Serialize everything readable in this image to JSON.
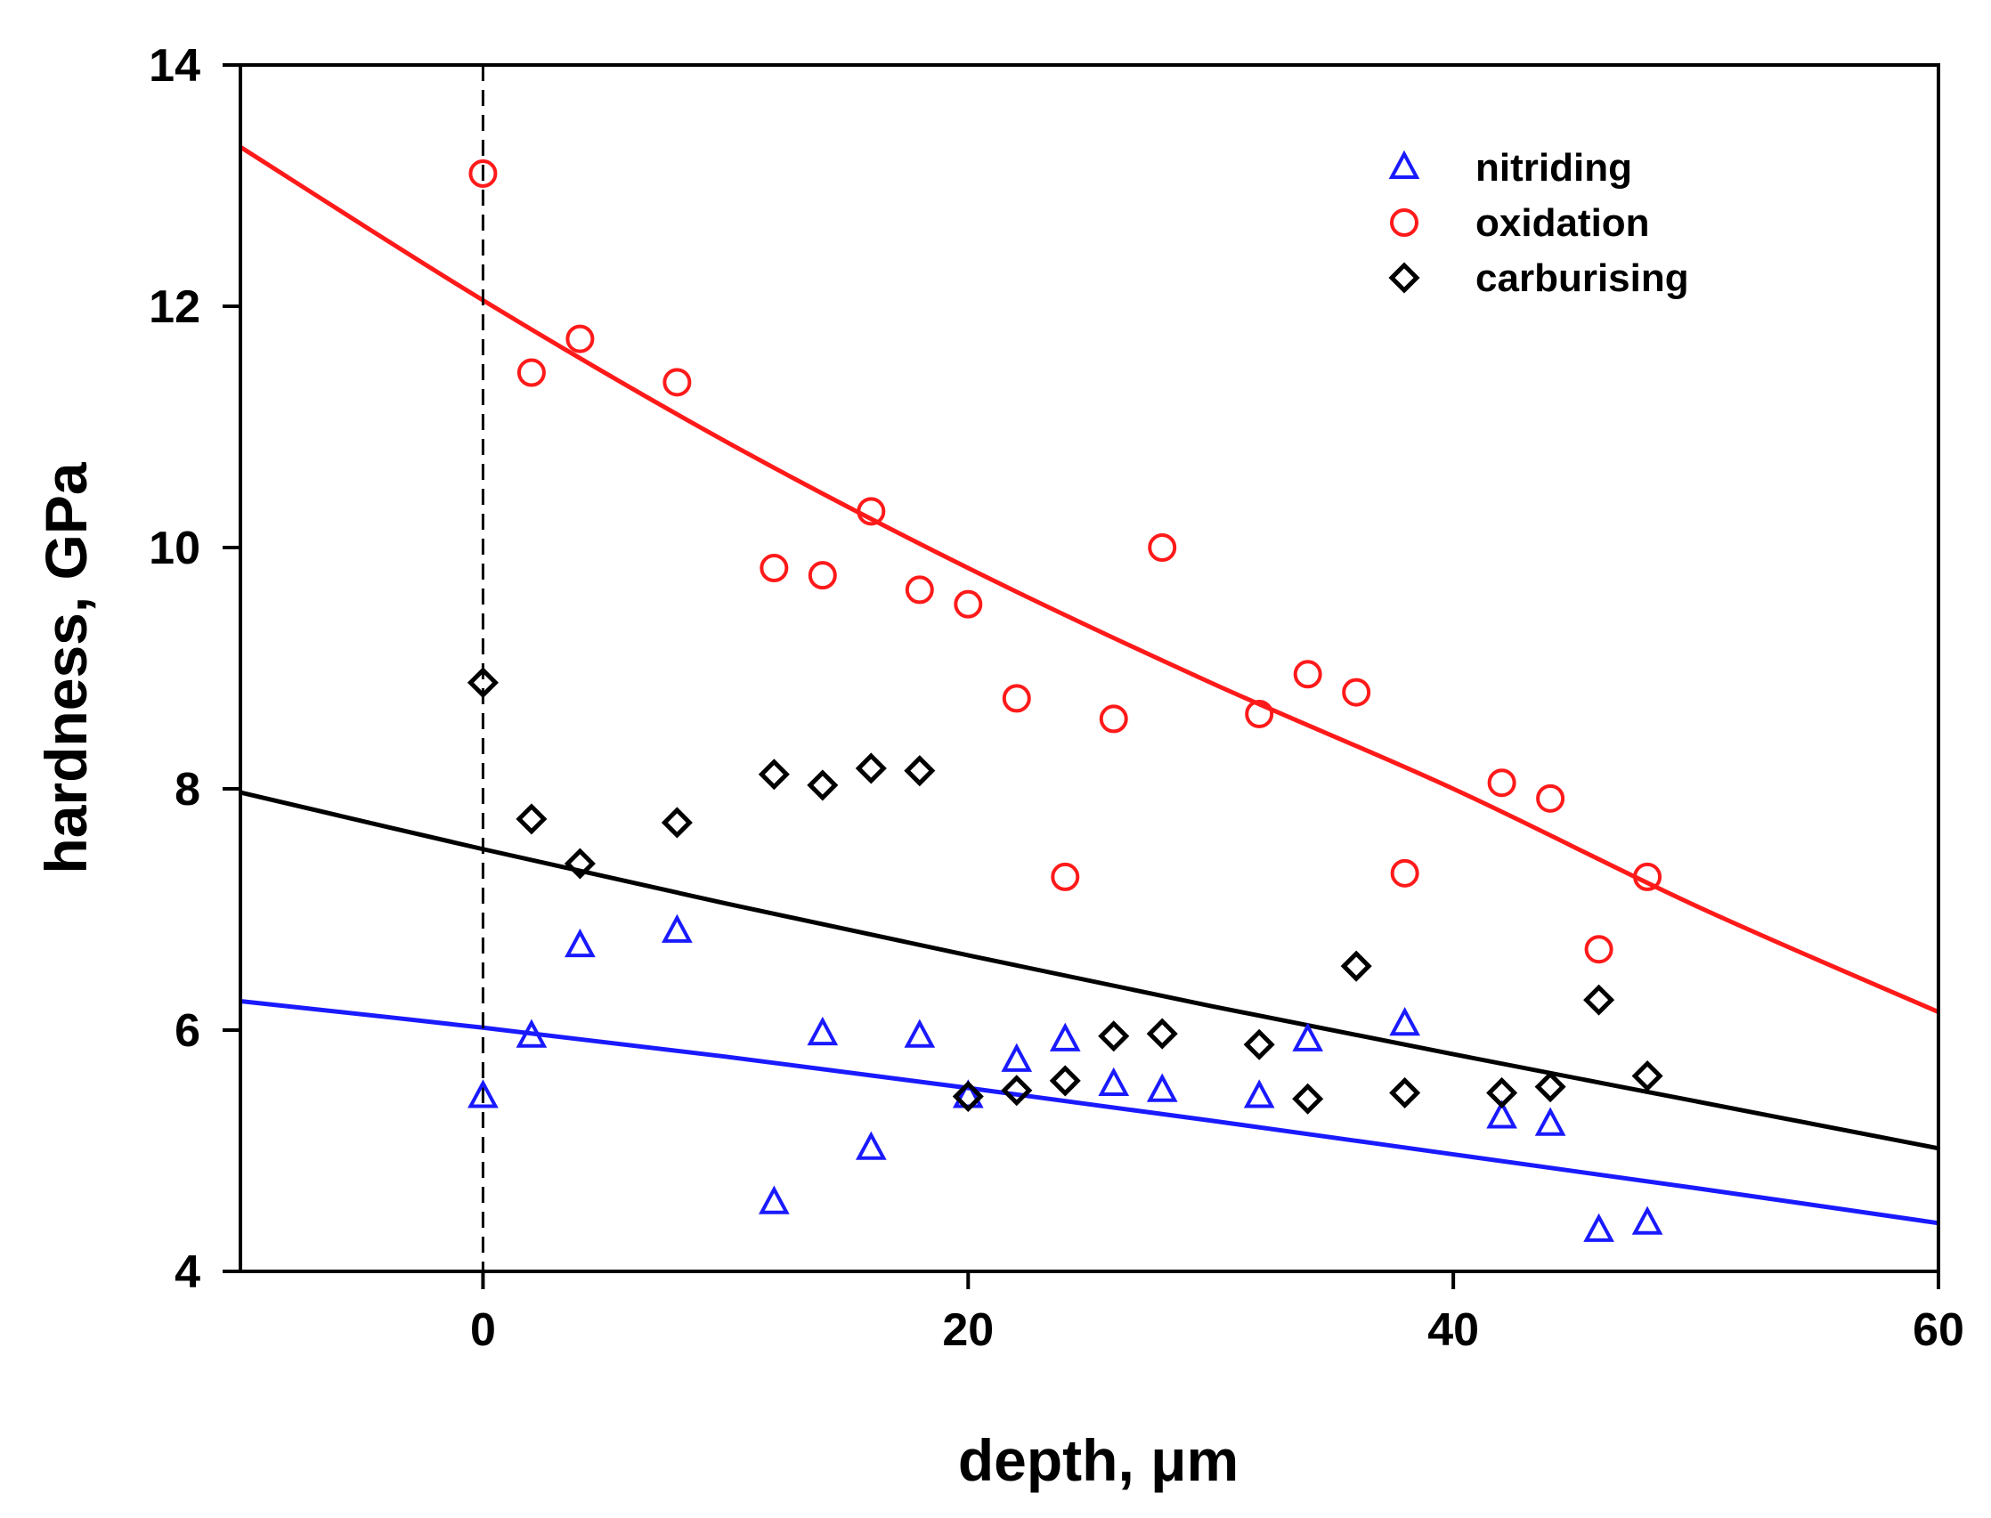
{
  "chart_data": {
    "type": "scatter",
    "title": "",
    "xlabel": "depth, μm",
    "ylabel": "hardness, GPa",
    "xlim": [
      -10,
      60
    ],
    "ylim": [
      4,
      14
    ],
    "xticks": [
      0,
      20,
      40,
      60
    ],
    "yticks": [
      4,
      6,
      8,
      10,
      12,
      14
    ],
    "xtick_labels": [
      "0",
      "20",
      "40",
      "60"
    ],
    "ytick_labels": [
      "4",
      "6",
      "8",
      "10",
      "12",
      "14"
    ],
    "grid": false,
    "legend_position": "top-right",
    "reference_line": {
      "x": 0,
      "style": "dashed",
      "color": "#000000"
    },
    "series": [
      {
        "name": "nitriding",
        "marker": "triangle",
        "color": "#1a1aff",
        "x": [
          0,
          2,
          4,
          8,
          12,
          14,
          16,
          18,
          20,
          22,
          24,
          26,
          28,
          32,
          34,
          38,
          42,
          44,
          46,
          48
        ],
        "y": [
          5.45,
          5.95,
          6.7,
          6.82,
          4.57,
          5.97,
          5.02,
          5.95,
          5.45,
          5.75,
          5.92,
          5.55,
          5.5,
          5.45,
          5.92,
          6.05,
          5.28,
          5.22,
          4.34,
          4.4
        ],
        "fit": {
          "type": "exponential",
          "x": [
            -10,
            0,
            10,
            20,
            30,
            40,
            50,
            60
          ],
          "y": [
            6.24,
            6.02,
            5.78,
            5.52,
            5.25,
            4.97,
            4.69,
            4.4
          ]
        }
      },
      {
        "name": "oxidation",
        "marker": "circle",
        "color": "#ff1a1a",
        "x": [
          0,
          2,
          4,
          8,
          12,
          14,
          16,
          18,
          20,
          22,
          24,
          26,
          28,
          32,
          34,
          36,
          38,
          42,
          44,
          46,
          48
        ],
        "y": [
          13.1,
          11.45,
          11.73,
          11.37,
          9.83,
          9.77,
          10.3,
          9.65,
          9.53,
          8.75,
          7.27,
          8.58,
          10.0,
          8.62,
          8.95,
          8.8,
          7.3,
          8.05,
          7.92,
          6.67,
          7.27
        ],
        "fit": {
          "type": "exponential",
          "x": [
            -10,
            0,
            10,
            20,
            30,
            40,
            50,
            60
          ],
          "y": [
            13.32,
            12.05,
            10.88,
            9.83,
            8.88,
            8.0,
            7.03,
            6.15
          ]
        }
      },
      {
        "name": "carburising",
        "marker": "diamond",
        "color": "#000000",
        "x": [
          0,
          2,
          4,
          8,
          12,
          14,
          16,
          18,
          20,
          22,
          24,
          26,
          28,
          32,
          34,
          36,
          38,
          42,
          44,
          46,
          48
        ],
        "y": [
          8.88,
          7.75,
          7.38,
          7.72,
          8.12,
          8.03,
          8.17,
          8.15,
          5.45,
          5.5,
          5.58,
          5.95,
          5.97,
          5.88,
          5.43,
          6.53,
          5.48,
          5.48,
          5.53,
          6.25,
          5.62
        ],
        "fit": {
          "type": "exponential",
          "x": [
            -10,
            0,
            10,
            20,
            30,
            40,
            50,
            60
          ],
          "y": [
            7.97,
            7.5,
            7.05,
            6.62,
            6.2,
            5.8,
            5.41,
            5.02
          ]
        }
      }
    ]
  }
}
